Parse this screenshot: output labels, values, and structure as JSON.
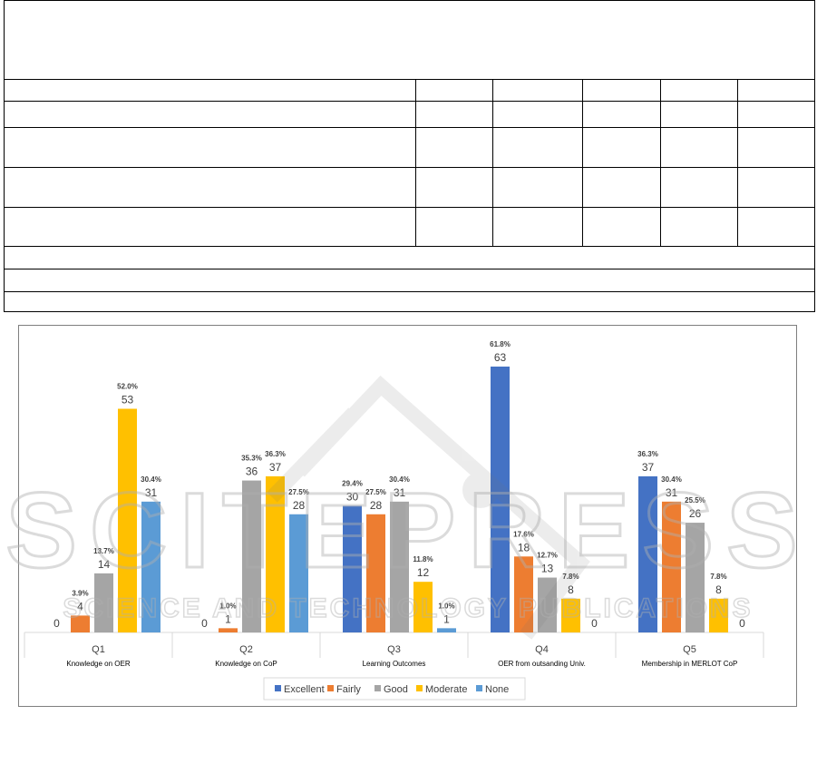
{
  "chart_data": {
    "type": "bar",
    "categories": [
      "Q1",
      "Q2",
      "Q3",
      "Q4",
      "Q5"
    ],
    "category_subtitles": [
      "Knowledge on OER",
      "Knowledge on CoP",
      "Learning Outcomes",
      "OER from outsanding Univ.",
      "Membership in MERLOT CoP"
    ],
    "series": [
      {
        "name": "Excellent",
        "color": "#4472C4",
        "values": [
          0,
          0,
          30,
          63,
          37
        ],
        "labels": [
          "0",
          "0",
          "30",
          "63",
          "37"
        ],
        "pct_labels": [
          "",
          "",
          "29.4%",
          "61.8%",
          "36.3%"
        ]
      },
      {
        "name": "Fairly",
        "color": "#ED7D31",
        "values": [
          4,
          1,
          28,
          18,
          31
        ],
        "labels": [
          "4",
          "1",
          "28",
          "18",
          "31"
        ],
        "pct_labels": [
          "3.9%",
          "1.0%",
          "27.5%",
          "17.6%",
          "30.4%"
        ]
      },
      {
        "name": "Good",
        "color": "#A5A5A5",
        "values": [
          14,
          36,
          31,
          13,
          26
        ],
        "labels": [
          "14",
          "36",
          "31",
          "13",
          "26"
        ],
        "pct_labels": [
          "13.7%",
          "35.3%",
          "30.4%",
          "12.7%",
          "25.5%"
        ]
      },
      {
        "name": "Moderate",
        "color": "#FFC000",
        "values": [
          53,
          37,
          12,
          8,
          8
        ],
        "labels": [
          "53",
          "37",
          "12",
          "8",
          "8"
        ],
        "pct_labels": [
          "52.0%",
          "36.3%",
          "11.8%",
          "7.8%",
          "7.8%"
        ]
      },
      {
        "name": "None",
        "color": "#5B9BD5",
        "values": [
          31,
          28,
          1,
          0,
          0
        ],
        "labels": [
          "31",
          "28",
          "1",
          "0",
          "0"
        ],
        "pct_labels": [
          "30.4%",
          "27.5%",
          "1.0%",
          "",
          ""
        ]
      }
    ],
    "ylim": [
      0,
      63
    ],
    "legend_position": "bottom",
    "grid": false
  },
  "watermark": {
    "line1": "SCITEPRESS",
    "line2": "SCIENCE AND TECHNOLOGY PUBLICATIONS"
  }
}
